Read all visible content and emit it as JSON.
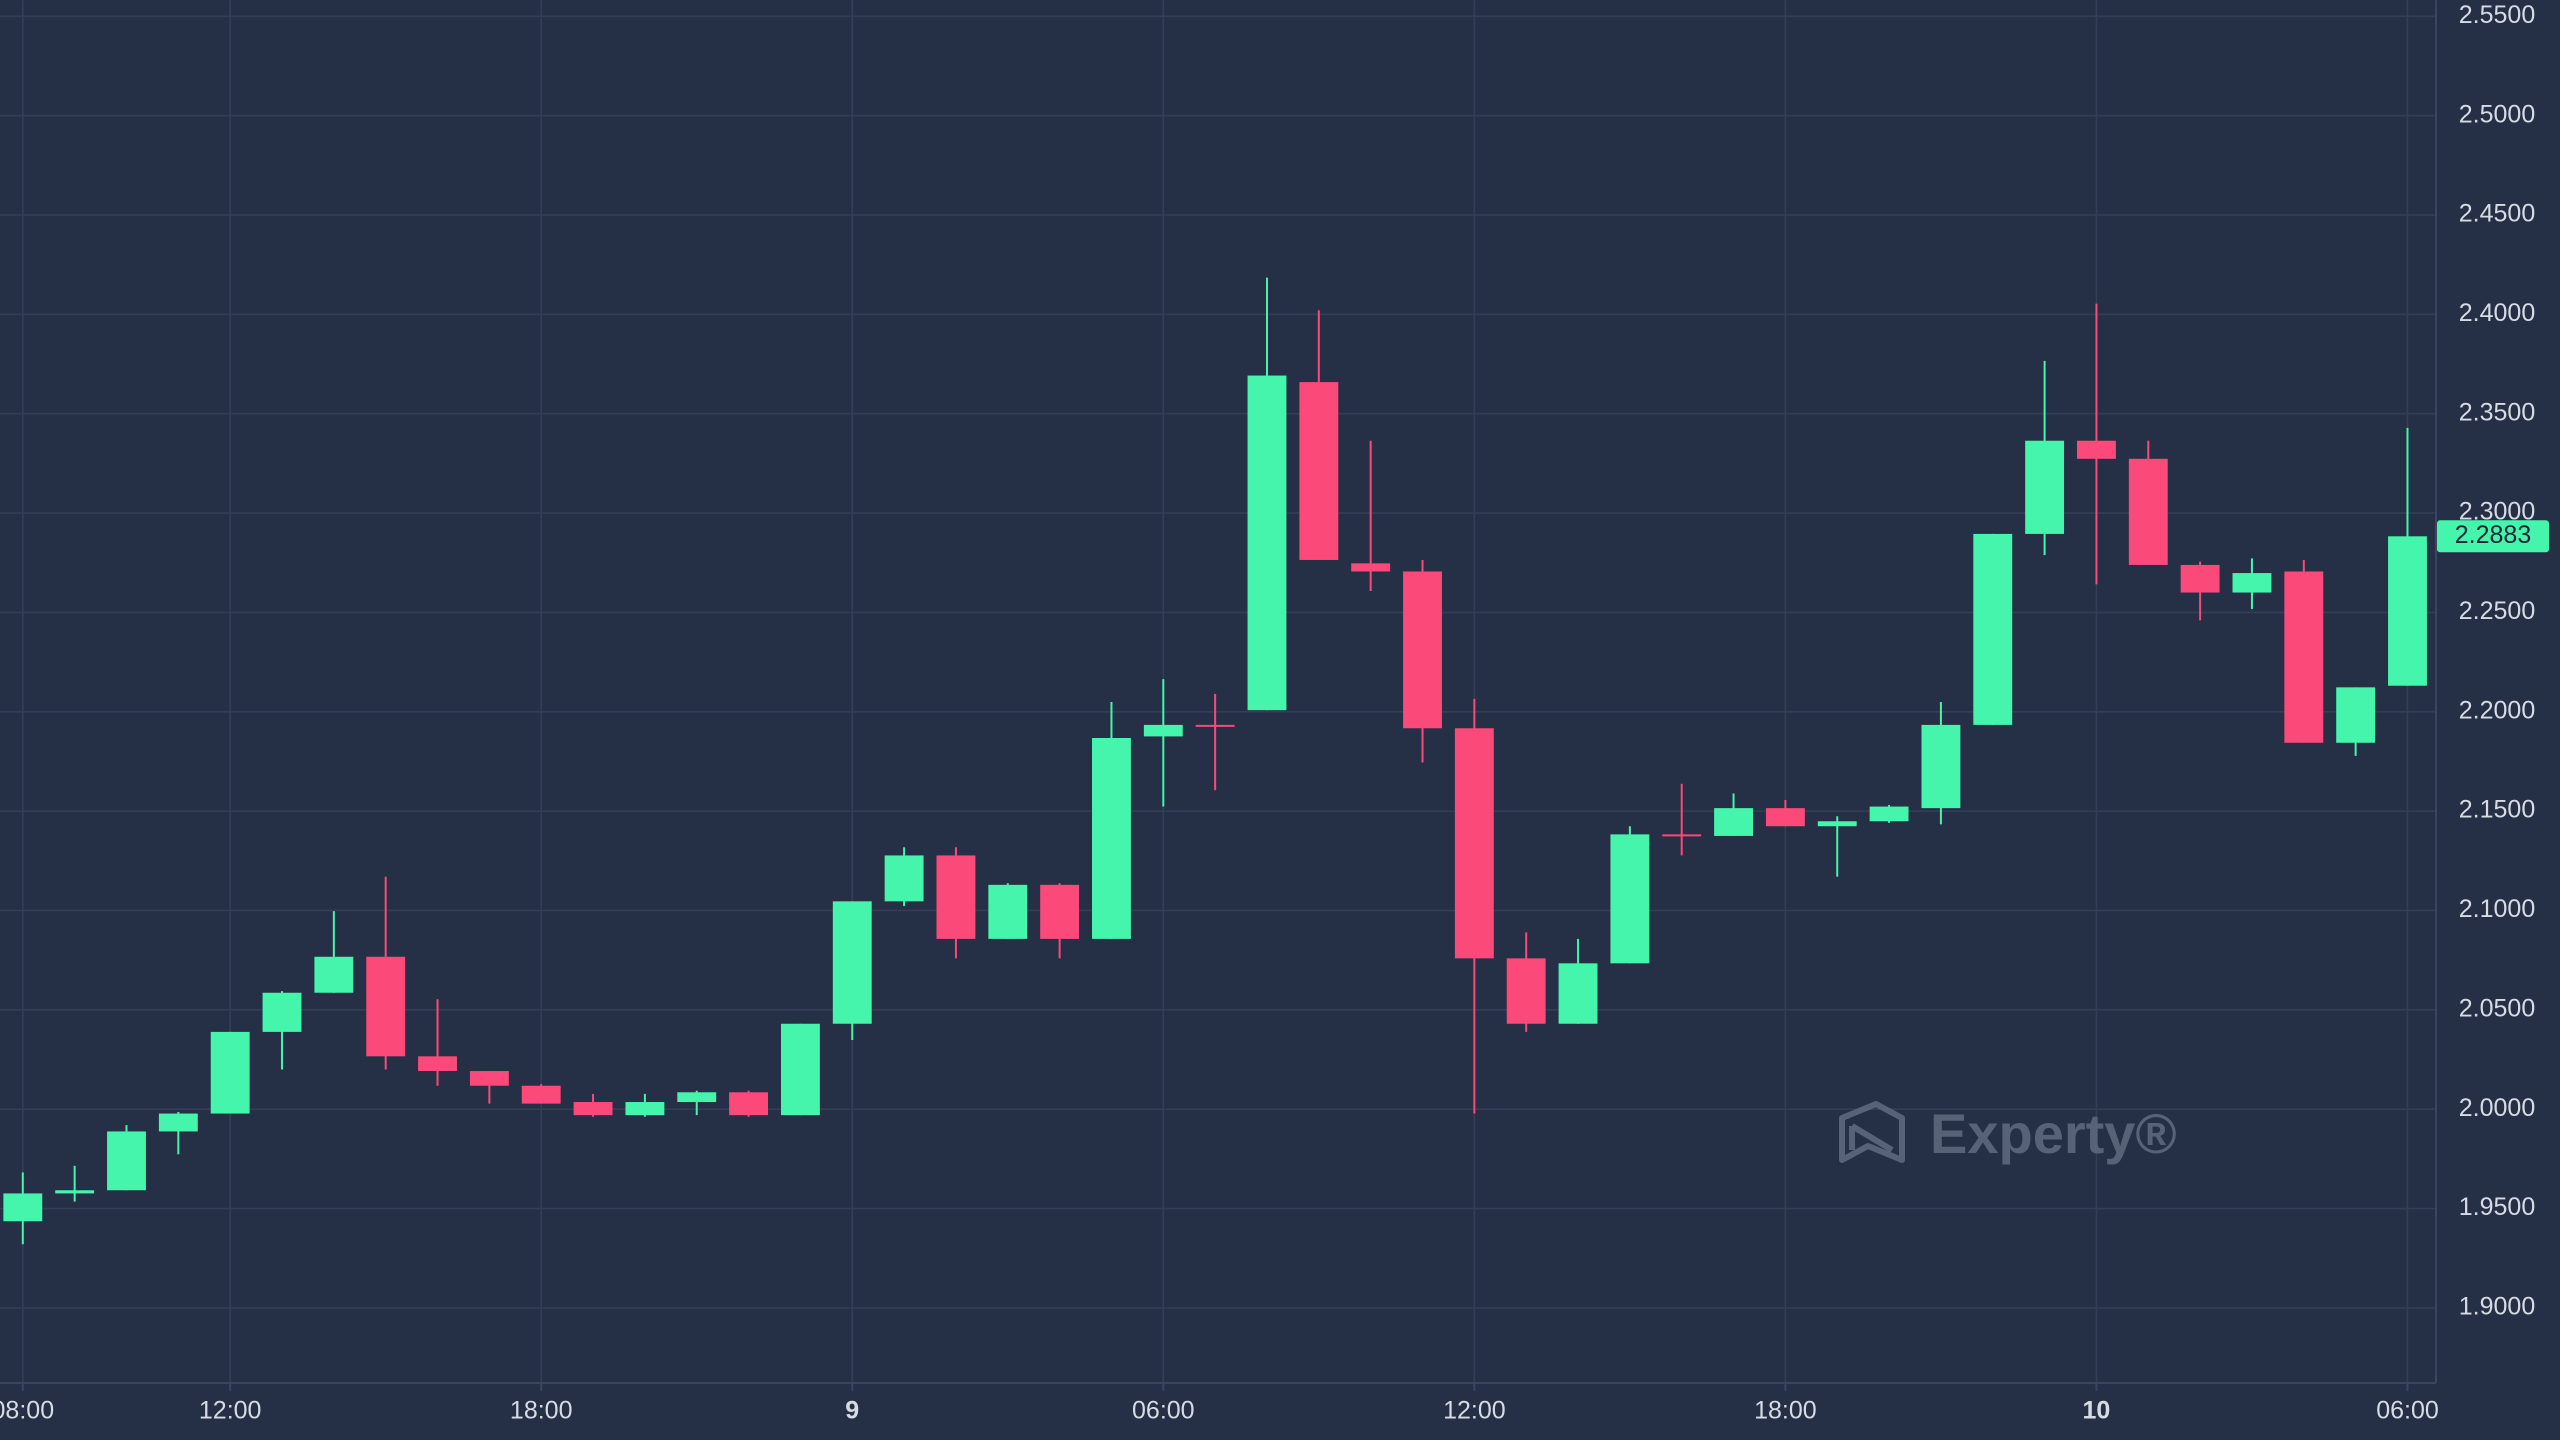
{
  "chart_data": {
    "type": "candlestick",
    "watermark": "Experty®",
    "up_color": "#45f5ab",
    "down_color": "#fb4a7a",
    "grid": true,
    "x": [
      8,
      9,
      10,
      11,
      12,
      13,
      14,
      15,
      16,
      17,
      18,
      19,
      20,
      21,
      22,
      23,
      24,
      25,
      26,
      27,
      28,
      29,
      30,
      31,
      32,
      33,
      34,
      35,
      36,
      37,
      38,
      39,
      40,
      41,
      42,
      43,
      44,
      45,
      46,
      47,
      48,
      49,
      50,
      51,
      52,
      53,
      54
    ],
    "open": [
      1.9436,
      1.9576,
      1.9592,
      1.9888,
      1.9978,
      2.0389,
      2.0586,
      2.0767,
      2.0266,
      2.0192,
      2.0118,
      2.0036,
      1.997,
      2.0036,
      2.0085,
      1.997,
      2.043,
      2.1046,
      2.1277,
      2.0857,
      2.1129,
      2.0857,
      2.1876,
      2.1934,
      2.2008,
      2.3659,
      2.2747,
      2.2706,
      2.1917,
      2.0759,
      2.043,
      2.0734,
      2.1383,
      2.1375,
      2.1515,
      2.1424,
      2.1449,
      2.1515,
      2.1934,
      2.2895,
      2.3364,
      2.3273,
      2.2739,
      2.26,
      2.2706,
      2.1844,
      2.2131
    ],
    "high": [
      1.9682,
      1.9715,
      1.992,
      1.9986,
      2.0389,
      2.0594,
      2.0997,
      2.117,
      2.0553,
      2.0192,
      2.0126,
      2.0077,
      2.0077,
      2.0093,
      2.0093,
      2.043,
      2.1046,
      2.1318,
      2.1318,
      2.1137,
      2.1137,
      2.2049,
      2.2164,
      2.209,
      2.4185,
      2.402,
      2.3364,
      2.2764,
      2.2065,
      2.089,
      2.0857,
      2.1424,
      2.1638,
      2.1589,
      2.1556,
      2.1474,
      2.1531,
      2.2049,
      2.2895,
      2.3766,
      2.4054,
      2.3364,
      2.2756,
      2.2772,
      2.2764,
      2.2123,
      2.3429
    ],
    "low": [
      1.932,
      1.9535,
      1.9592,
      1.9773,
      1.9978,
      2.02,
      2.0586,
      2.02,
      2.0118,
      2.0028,
      2.0028,
      1.9962,
      1.9962,
      1.997,
      1.9962,
      1.997,
      2.0348,
      2.1022,
      2.0759,
      2.0857,
      2.0759,
      2.0857,
      2.1523,
      2.1605,
      2.2008,
      2.2764,
      2.2608,
      2.1745,
      1.9978,
      2.0389,
      2.043,
      2.0734,
      2.1277,
      2.1375,
      2.1424,
      2.117,
      2.1441,
      2.1433,
      2.1934,
      2.2788,
      2.2641,
      2.2739,
      2.246,
      2.2517,
      2.1844,
      2.1778,
      2.2131
    ],
    "close": [
      1.9576,
      1.9592,
      1.9888,
      1.9978,
      2.0389,
      2.0586,
      2.0767,
      2.0266,
      2.0192,
      2.0118,
      2.0028,
      1.997,
      2.0036,
      2.0085,
      1.997,
      2.043,
      2.1046,
      2.1277,
      2.0857,
      2.1129,
      2.0857,
      2.1868,
      2.1934,
      2.1926,
      2.3692,
      2.2764,
      2.2706,
      2.1917,
      2.0759,
      2.043,
      2.0734,
      2.1383,
      2.1375,
      2.1515,
      2.1424,
      2.1449,
      2.1523,
      2.1934,
      2.2895,
      2.3364,
      2.3273,
      2.2739,
      2.26,
      2.2698,
      2.1844,
      2.2123,
      2.2883
    ],
    "xlim": [
      7.56,
      54.55
    ],
    "xticks": [
      {
        "value": 8,
        "label": "08:00"
      },
      {
        "value": 12,
        "label": "12:00"
      },
      {
        "value": 18,
        "label": "18:00"
      },
      {
        "value": 24,
        "label": "9"
      },
      {
        "value": 30,
        "label": "06:00"
      },
      {
        "value": 36,
        "label": "12:00"
      },
      {
        "value": 42,
        "label": "18:00"
      },
      {
        "value": 48,
        "label": "10"
      },
      {
        "value": 54,
        "label": "06:00"
      }
    ],
    "ylim": [
      1.8622,
      2.5582
    ],
    "yticks": [
      {
        "value": 1.9,
        "label": "1.9000"
      },
      {
        "value": 1.95,
        "label": "1.9500"
      },
      {
        "value": 2.0,
        "label": "2.0000"
      },
      {
        "value": 2.05,
        "label": "2.0500"
      },
      {
        "value": 2.1,
        "label": "2.1000"
      },
      {
        "value": 2.15,
        "label": "2.1500"
      },
      {
        "value": 2.2,
        "label": "2.2000"
      },
      {
        "value": 2.25,
        "label": "2.2500"
      },
      {
        "value": 2.3,
        "label": "2.3000"
      },
      {
        "value": 2.35,
        "label": "2.3500"
      },
      {
        "value": 2.4,
        "label": "2.4000"
      },
      {
        "value": 2.45,
        "label": "2.4500"
      },
      {
        "value": 2.5,
        "label": "2.5000"
      },
      {
        "value": 2.55,
        "label": "2.5500"
      }
    ]
  }
}
